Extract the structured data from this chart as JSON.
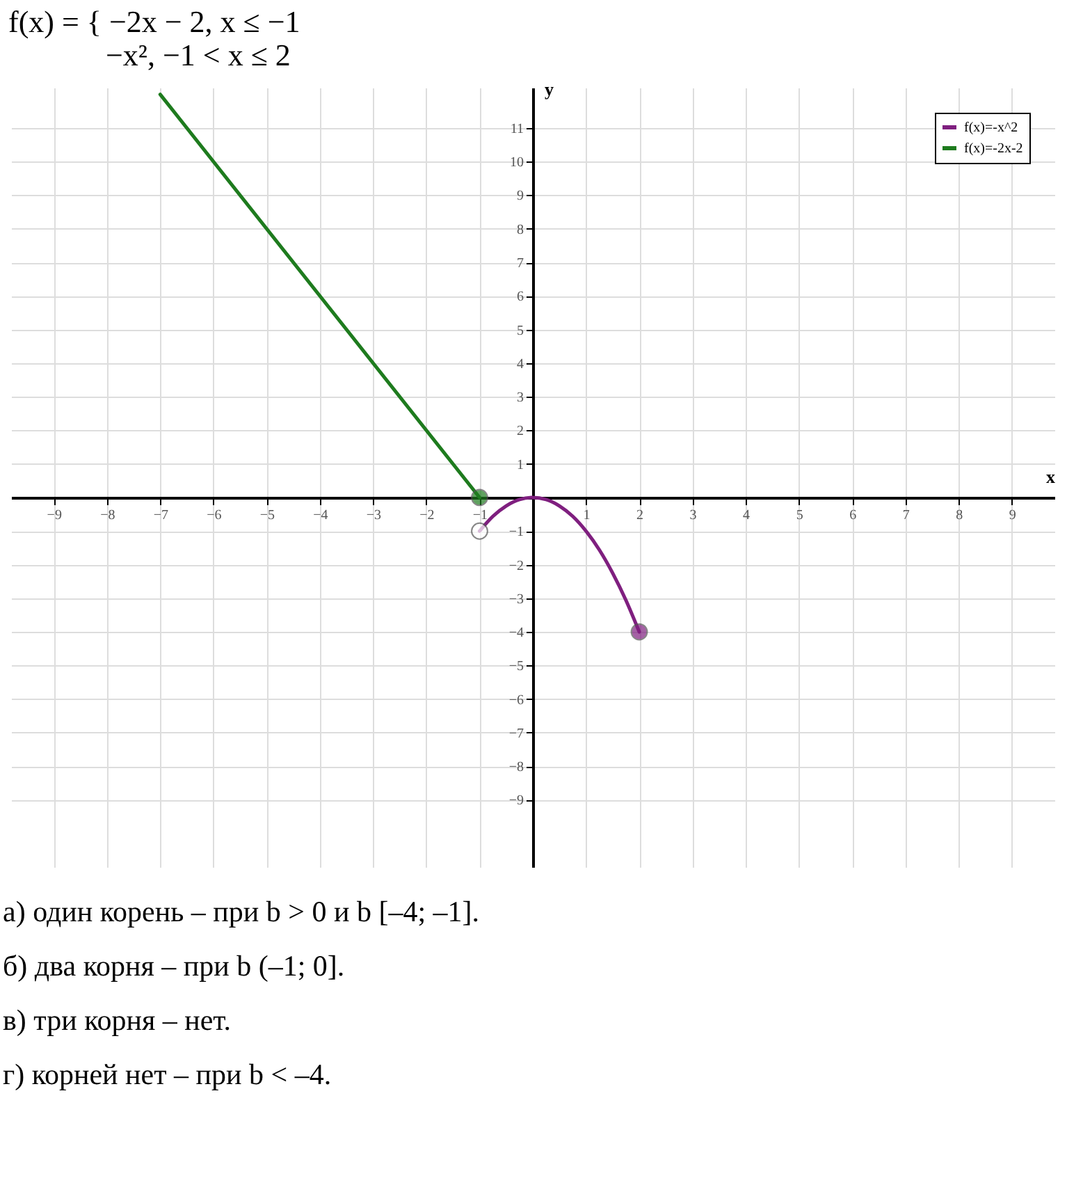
{
  "chart_data": {
    "type": "line",
    "title": "f(x) = { −2x − 2,   x ≤ −1",
    "subtitle": "−x²,   −1 < x ≤ 2",
    "xlabel": "x",
    "ylabel": "y",
    "xlim": [
      -9.8,
      9.8
    ],
    "ylim": [
      -11,
      12.2
    ],
    "xticks": [
      -9,
      -8,
      -7,
      -6,
      -5,
      -4,
      -3,
      -2,
      -1,
      1,
      2,
      3,
      4,
      5,
      6,
      7,
      8,
      9
    ],
    "yticks": [
      -9,
      -8,
      -7,
      -6,
      -5,
      -4,
      -3,
      -2,
      -1,
      1,
      2,
      3,
      4,
      5,
      6,
      7,
      8,
      9,
      10,
      11
    ],
    "grid": true,
    "legend": "top right",
    "line_style": "solid",
    "series": [
      {
        "name": "f(x)=-x^2",
        "color": "#7f1f7f",
        "x": [
          -1,
          -0.75,
          -0.5,
          -0.25,
          0,
          0.25,
          0.5,
          0.75,
          1,
          1.25,
          1.5,
          1.75,
          2
        ],
        "values": [
          -1,
          -0.56,
          -0.25,
          -0.06,
          0,
          -0.06,
          -0.25,
          -0.56,
          -1,
          -1.56,
          -2.25,
          -3.06,
          -4
        ]
      },
      {
        "name": "f(x)=-2x-2",
        "color": "#1e7b1e",
        "x": [
          -7,
          -1
        ],
        "values": [
          12,
          0
        ]
      },
      {
        "type": "scatter",
        "color": "#1e7b1e",
        "x": [
          -1
        ],
        "values": [
          0
        ]
      },
      {
        "type": "scatter",
        "color": "#ffffff",
        "x": [
          -1
        ],
        "values": [
          -1
        ]
      },
      {
        "type": "scatter",
        "color": "#7f1f7f",
        "x": [
          2
        ],
        "values": [
          -4
        ]
      }
    ],
    "annotations": [
      "а) один корень – при b > 0 и b [–4; –1].",
      "б) два корня – при b (–1; 0].",
      "в) три корня – нет.",
      "г) корней нет – при b < –4."
    ]
  }
}
